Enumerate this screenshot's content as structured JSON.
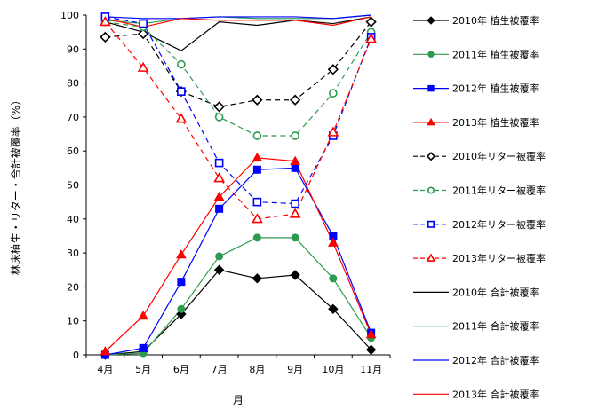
{
  "chart_data": {
    "type": "line",
    "title": "",
    "xlabel": "月",
    "ylabel": "林床植生・リター・合計被覆率（%）",
    "categories": [
      "4月",
      "5月",
      "6月",
      "7月",
      "8月",
      "9月",
      "10月",
      "11月"
    ],
    "ylim": [
      0,
      100
    ],
    "yticks": [
      0,
      10,
      20,
      30,
      40,
      50,
      60,
      70,
      80,
      90,
      100
    ],
    "grid": false,
    "legend_position": "right",
    "series": [
      {
        "name": "2010年 植生被覆率",
        "values": [
          0,
          1,
          12,
          25,
          22.5,
          23.5,
          13.5,
          1.5
        ],
        "color": "#000000",
        "dash": "solid",
        "marker": "diamond",
        "fill": "filled"
      },
      {
        "name": "2011年 植生被覆率",
        "values": [
          0,
          0.5,
          13.5,
          29,
          34.5,
          34.5,
          22.5,
          5
        ],
        "color": "#2e9a4f",
        "dash": "solid",
        "marker": "circle",
        "fill": "filled"
      },
      {
        "name": "2012年 植生被覆率",
        "values": [
          0,
          2,
          21.5,
          43,
          54.5,
          55,
          35,
          6.5
        ],
        "color": "#0000ff",
        "dash": "solid",
        "marker": "square",
        "fill": "filled"
      },
      {
        "name": "2013年 植生被覆率",
        "values": [
          1,
          11.5,
          29.5,
          46.5,
          58,
          57,
          33,
          6
        ],
        "color": "#ff0000",
        "dash": "solid",
        "marker": "triangle",
        "fill": "filled"
      },
      {
        "name": "2010年リター被覆率",
        "values": [
          93.5,
          94.5,
          77.5,
          73,
          75,
          75,
          84,
          98
        ],
        "color": "#000000",
        "dash": "dashed",
        "marker": "diamond",
        "fill": "open"
      },
      {
        "name": "2011年リター被覆率",
        "values": [
          98,
          96.5,
          85.5,
          70,
          64.5,
          64.5,
          77,
          95
        ],
        "color": "#2e9a4f",
        "dash": "dashed",
        "marker": "circle",
        "fill": "open"
      },
      {
        "name": "2012年リター被覆率",
        "values": [
          99.5,
          97.5,
          77.5,
          56.5,
          45,
          44.5,
          64.5,
          93.5
        ],
        "color": "#0000ff",
        "dash": "dashed",
        "marker": "square",
        "fill": "open"
      },
      {
        "name": "2013年リター被覆率",
        "values": [
          98,
          84.5,
          69.5,
          52,
          40,
          41.5,
          65.5,
          93
        ],
        "color": "#ff0000",
        "dash": "dashed",
        "marker": "triangle",
        "fill": "open"
      },
      {
        "name": "2010年 合計被覆率",
        "values": [
          98,
          95,
          89.5,
          98,
          97,
          98.5,
          97.5,
          99.5
        ],
        "color": "#000000",
        "dash": "solid",
        "marker": "none",
        "fill": "none"
      },
      {
        "name": "2011年 合計被覆率",
        "values": [
          98.5,
          97.5,
          99,
          99.5,
          99,
          99,
          99,
          100
        ],
        "color": "#2e9a4f",
        "dash": "solid",
        "marker": "none",
        "fill": "none"
      },
      {
        "name": "2012年 合計被覆率",
        "values": [
          99.5,
          99,
          99,
          99.5,
          99.5,
          99.5,
          99,
          100
        ],
        "color": "#0000ff",
        "dash": "solid",
        "marker": "none",
        "fill": "none"
      },
      {
        "name": "2013年 合計被覆率",
        "values": [
          99,
          96.5,
          99,
          98.5,
          98.5,
          98.5,
          97,
          99.5
        ],
        "color": "#ff0000",
        "dash": "solid",
        "marker": "none",
        "fill": "none"
      }
    ]
  }
}
